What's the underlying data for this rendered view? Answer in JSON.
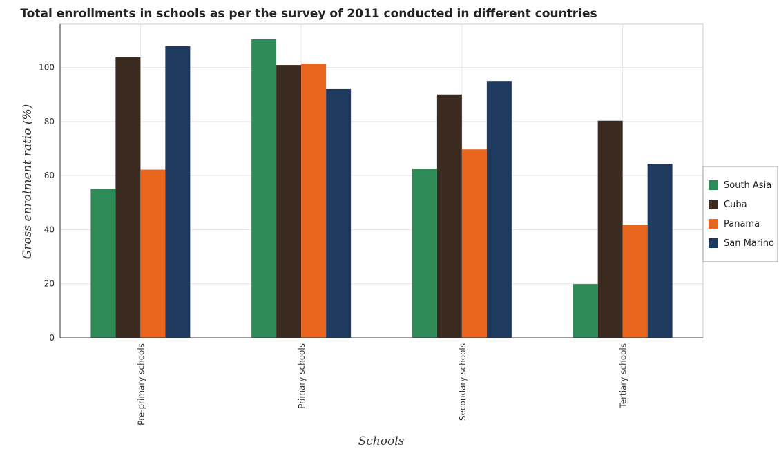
{
  "chart_data": {
    "type": "bar",
    "title": "Total enrollments in schools as per the survey of 2011 conducted in different countries",
    "xlabel": "Schools",
    "ylabel": "Gross enrolment ratio (%)",
    "categories": [
      "Pre-primary schools",
      "Primary schools",
      "Secondary schools",
      "Tertiary schools"
    ],
    "series": [
      {
        "name": "South Asia",
        "color": "#2e8b57",
        "values": [
          55.1,
          110.4,
          62.5,
          19.9
        ]
      },
      {
        "name": "Cuba",
        "color": "#3b2a20",
        "values": [
          103.8,
          100.9,
          90.0,
          80.3
        ]
      },
      {
        "name": "Panama",
        "color": "#e8651e",
        "values": [
          62.2,
          101.4,
          69.7,
          41.8
        ]
      },
      {
        "name": "San Marino",
        "color": "#1e3a5f",
        "values": [
          107.9,
          92.0,
          95.0,
          64.3
        ]
      }
    ],
    "ylim": [
      0,
      116
    ],
    "yticks": [
      0,
      20,
      40,
      60,
      80,
      100
    ],
    "grid": true,
    "legend_position": "right"
  }
}
